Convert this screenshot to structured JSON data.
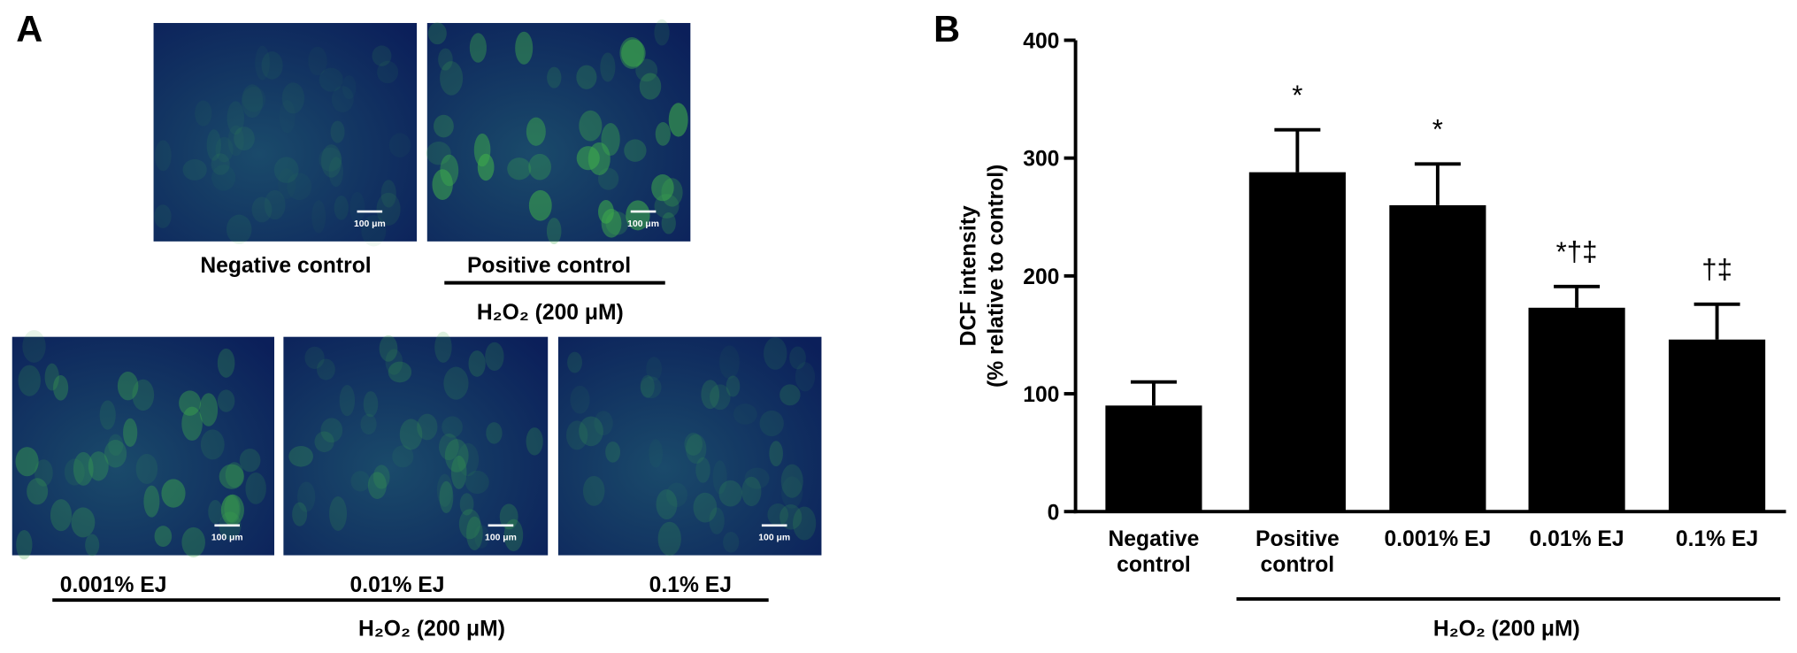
{
  "panel_a": {
    "label": "A",
    "images": [
      {
        "caption": "Negative control",
        "scale_bar": "100 μm",
        "brightness": 0.2
      },
      {
        "caption": "Positive control",
        "scale_bar": "100 μm",
        "brightness": 0.9
      },
      {
        "caption": "0.001% EJ",
        "scale_bar": "100 μm",
        "brightness": 0.7
      },
      {
        "caption": "0.01% EJ",
        "scale_bar": "100 μm",
        "brightness": 0.4
      },
      {
        "caption": "0.1% EJ",
        "scale_bar": "100 μm",
        "brightness": 0.35
      }
    ],
    "group_labels": [
      "H₂O₂ (200 μM)",
      "H₂O₂ (200 μM)"
    ]
  },
  "chart_data": {
    "type": "bar",
    "panel_label": "B",
    "ylabel": [
      "DCF intensity",
      "(% relative to control)"
    ],
    "categories": [
      "Negative control",
      "Positive control",
      "0.001% EJ",
      "0.01% EJ",
      "0.1% EJ"
    ],
    "values": [
      90,
      288,
      260,
      173,
      146
    ],
    "errors": [
      20,
      36,
      35,
      18,
      30
    ],
    "annotations": [
      null,
      "*",
      "*",
      "*†‡",
      "†‡"
    ],
    "group_label": "H₂O₂ (200 μM)",
    "color": "#000000",
    "ylim": [
      0,
      400
    ],
    "yticks": [
      0,
      100,
      200,
      300,
      400
    ]
  }
}
